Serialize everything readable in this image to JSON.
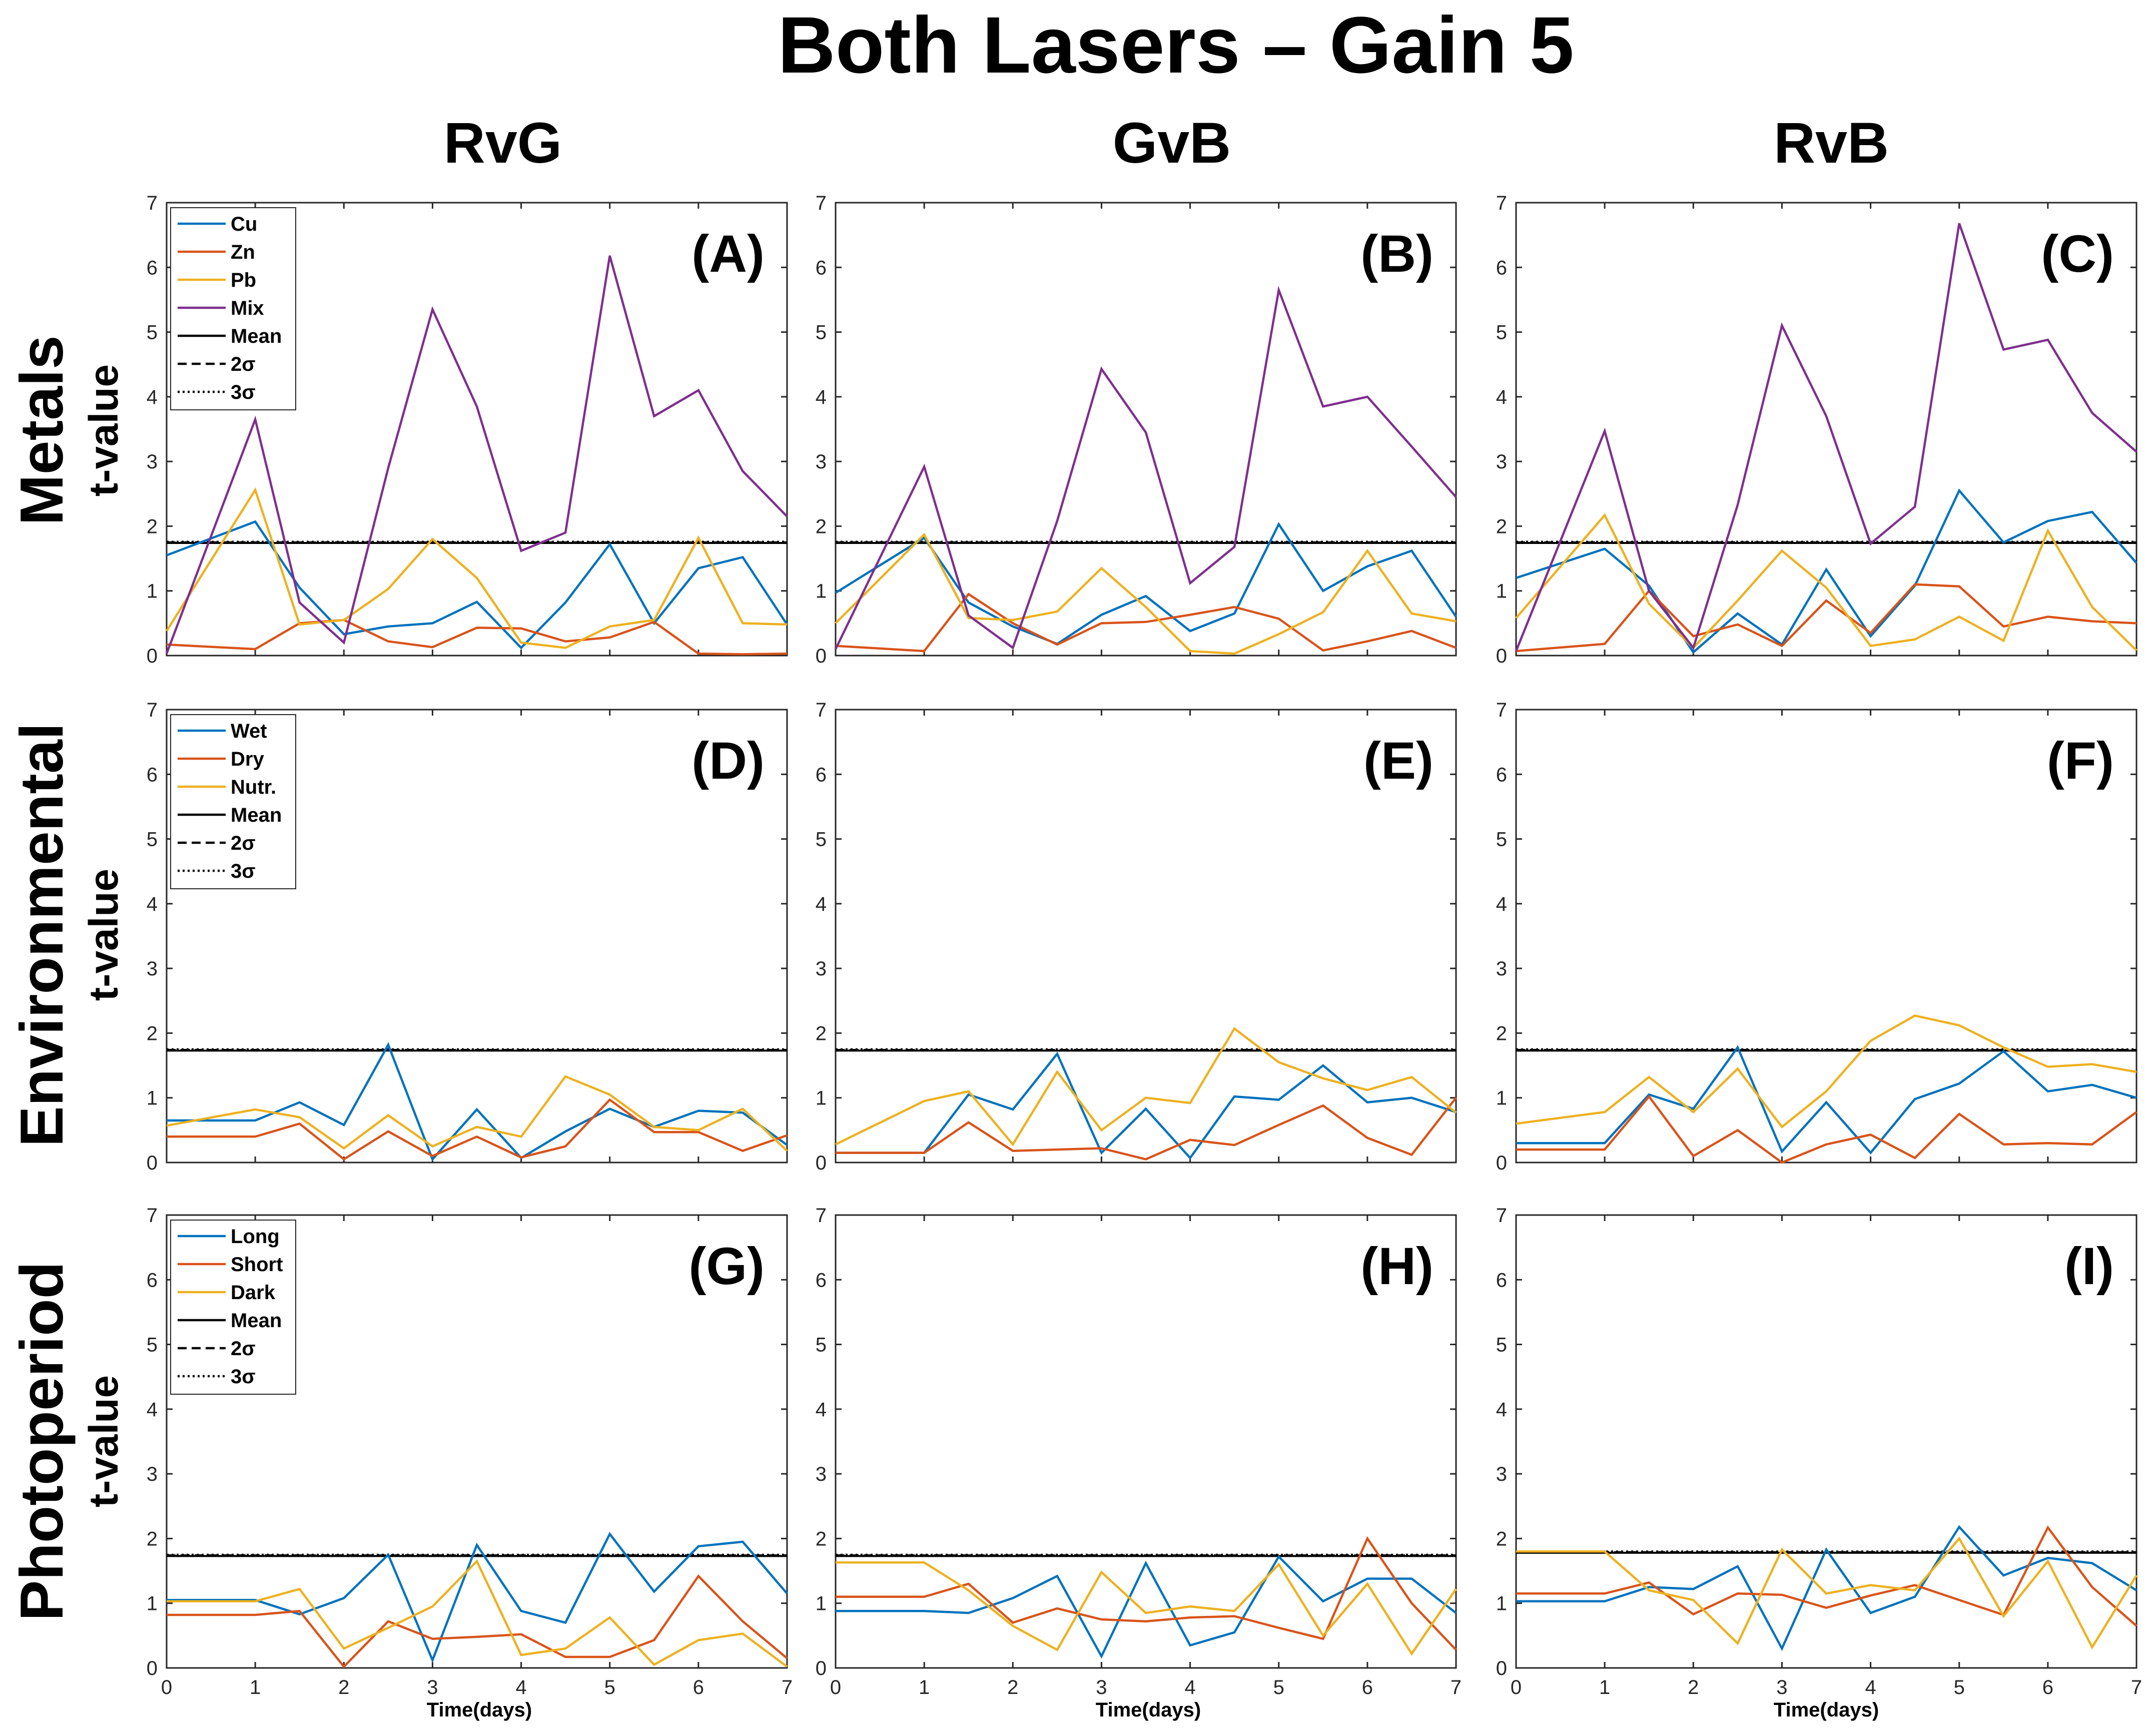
{
  "figure": {
    "title": "Both Lasers – Gain 5",
    "column_titles": [
      "RvG",
      "GvB",
      "RvB"
    ],
    "row_titles": [
      "Metals",
      "Environmental",
      "Photoperiod"
    ],
    "ylabel": "t-value",
    "xlabel": "Time(days)",
    "colors": {
      "blue": "#0072BD",
      "orange": "#D95319",
      "yellow": "#EDB120",
      "purple": "#7E2F8E",
      "reference": "#000000"
    }
  },
  "chart_data": [
    {
      "type": "line",
      "panel": "A",
      "group": "Metals",
      "comparison": "RvG",
      "xlim": [
        0,
        7
      ],
      "ylim": [
        0,
        7
      ],
      "legend_position": "top-left",
      "x": [
        0,
        1,
        1.5,
        2,
        2.5,
        3,
        3.5,
        4,
        4.5,
        5,
        5.5,
        6,
        6.5,
        7
      ],
      "series": [
        {
          "name": "Cu",
          "color": "#0072BD",
          "values": [
            1.55,
            2.07,
            1.05,
            0.33,
            0.45,
            0.5,
            0.83,
            0.12,
            0.82,
            1.72,
            0.5,
            1.35,
            1.52,
            0.48
          ]
        },
        {
          "name": "Zn",
          "color": "#D95319",
          "values": [
            0.17,
            0.1,
            0.5,
            0.55,
            0.22,
            0.13,
            0.43,
            0.42,
            0.22,
            0.28,
            0.52,
            0.03,
            0.02,
            0.03
          ]
        },
        {
          "name": "Pb",
          "color": "#EDB120",
          "values": [
            0.38,
            2.56,
            0.48,
            0.55,
            1.03,
            1.8,
            1.2,
            0.2,
            0.12,
            0.45,
            0.55,
            1.82,
            0.5,
            0.48
          ]
        },
        {
          "name": "Mix",
          "color": "#7E2F8E",
          "values": [
            0.03,
            3.65,
            0.82,
            0.2,
            2.9,
            5.35,
            3.85,
            1.62,
            1.9,
            6.18,
            3.7,
            4.1,
            2.85,
            2.15
          ]
        }
      ],
      "reference_lines": [
        {
          "name": "Mean",
          "style": "solid",
          "value": 1.74
        },
        {
          "name": "2σ",
          "style": "dashed",
          "value": 1.75
        },
        {
          "name": "3σ",
          "style": "dotted",
          "value": 1.76
        }
      ]
    },
    {
      "type": "line",
      "panel": "B",
      "group": "Metals",
      "comparison": "GvB",
      "xlim": [
        0,
        7
      ],
      "ylim": [
        0,
        7
      ],
      "legend_position": "none",
      "x": [
        0,
        1,
        1.5,
        2,
        2.5,
        3,
        3.5,
        4,
        4.5,
        5,
        5.5,
        6,
        6.5,
        7
      ],
      "series": [
        {
          "name": "Cu",
          "color": "#0072BD",
          "values": [
            0.97,
            1.82,
            0.82,
            0.45,
            0.18,
            0.63,
            0.92,
            0.38,
            0.65,
            2.03,
            1.0,
            1.38,
            1.62,
            0.6
          ]
        },
        {
          "name": "Zn",
          "color": "#D95319",
          "values": [
            0.15,
            0.07,
            0.95,
            0.5,
            0.17,
            0.5,
            0.52,
            0.63,
            0.75,
            0.57,
            0.08,
            0.22,
            0.38,
            0.12
          ]
        },
        {
          "name": "Pb",
          "color": "#EDB120",
          "values": [
            0.5,
            1.87,
            0.58,
            0.55,
            0.68,
            1.35,
            0.75,
            0.07,
            0.03,
            0.33,
            0.67,
            1.62,
            0.65,
            0.53
          ]
        },
        {
          "name": "Mix",
          "color": "#7E2F8E",
          "values": [
            0.1,
            2.92,
            0.62,
            0.12,
            2.08,
            4.43,
            3.45,
            1.12,
            1.68,
            5.65,
            3.85,
            4.0,
            3.23,
            2.45
          ]
        }
      ],
      "reference_lines": [
        {
          "name": "Mean",
          "style": "solid",
          "value": 1.74
        },
        {
          "name": "2σ",
          "style": "dashed",
          "value": 1.75
        },
        {
          "name": "3σ",
          "style": "dotted",
          "value": 1.76
        }
      ]
    },
    {
      "type": "line",
      "panel": "C",
      "group": "Metals",
      "comparison": "RvB",
      "xlim": [
        0,
        7
      ],
      "ylim": [
        0,
        7
      ],
      "legend_position": "none",
      "x": [
        0,
        1,
        1.5,
        2,
        2.5,
        3,
        3.5,
        4,
        4.5,
        5,
        5.5,
        6,
        6.5,
        7
      ],
      "series": [
        {
          "name": "Cu",
          "color": "#0072BD",
          "values": [
            1.2,
            1.65,
            1.08,
            0.05,
            0.65,
            0.17,
            1.33,
            0.3,
            1.08,
            2.55,
            1.75,
            2.08,
            2.22,
            1.43
          ]
        },
        {
          "name": "Zn",
          "color": "#D95319",
          "values": [
            0.07,
            0.18,
            1.0,
            0.3,
            0.48,
            0.15,
            0.85,
            0.35,
            1.1,
            1.07,
            0.45,
            0.6,
            0.53,
            0.5
          ]
        },
        {
          "name": "Pb",
          "color": "#EDB120",
          "values": [
            0.58,
            2.17,
            0.8,
            0.12,
            0.85,
            1.62,
            1.05,
            0.15,
            0.25,
            0.6,
            0.23,
            1.93,
            0.75,
            0.08
          ]
        },
        {
          "name": "Mix",
          "color": "#7E2F8E",
          "values": [
            0.07,
            3.47,
            1.0,
            0.12,
            2.33,
            5.1,
            3.7,
            1.73,
            2.3,
            6.68,
            4.73,
            4.88,
            3.75,
            3.15
          ]
        }
      ],
      "reference_lines": [
        {
          "name": "Mean",
          "style": "solid",
          "value": 1.74
        },
        {
          "name": "2σ",
          "style": "dashed",
          "value": 1.75
        },
        {
          "name": "3σ",
          "style": "dotted",
          "value": 1.76
        }
      ]
    },
    {
      "type": "line",
      "panel": "D",
      "group": "Environmental",
      "comparison": "RvG",
      "xlim": [
        0,
        7
      ],
      "ylim": [
        0,
        7
      ],
      "legend_position": "top-left",
      "x": [
        0,
        1,
        1.5,
        2,
        2.5,
        3,
        3.5,
        4,
        4.5,
        5,
        5.5,
        6,
        6.5,
        7
      ],
      "series": [
        {
          "name": "Wet",
          "color": "#0072BD",
          "values": [
            0.65,
            0.65,
            0.93,
            0.58,
            1.82,
            0.05,
            0.82,
            0.07,
            0.48,
            0.83,
            0.55,
            0.8,
            0.77,
            0.27
          ]
        },
        {
          "name": "Dry",
          "color": "#D95319",
          "values": [
            0.4,
            0.4,
            0.6,
            0.05,
            0.48,
            0.1,
            0.4,
            0.08,
            0.25,
            0.97,
            0.47,
            0.47,
            0.18,
            0.42
          ]
        },
        {
          "name": "Nutr.",
          "color": "#EDB120",
          "values": [
            0.57,
            0.82,
            0.7,
            0.22,
            0.73,
            0.25,
            0.55,
            0.4,
            1.33,
            1.05,
            0.55,
            0.5,
            0.83,
            0.18
          ]
        }
      ],
      "reference_lines": [
        {
          "name": "Mean",
          "style": "solid",
          "value": 1.73
        },
        {
          "name": "2σ",
          "style": "dashed",
          "value": 1.74
        },
        {
          "name": "3σ",
          "style": "dotted",
          "value": 1.75
        }
      ]
    },
    {
      "type": "line",
      "panel": "E",
      "group": "Environmental",
      "comparison": "GvB",
      "xlim": [
        0,
        7
      ],
      "ylim": [
        0,
        7
      ],
      "legend_position": "none",
      "x": [
        0,
        1,
        1.5,
        2,
        2.5,
        3,
        3.5,
        4,
        4.5,
        5,
        5.5,
        6,
        6.5,
        7
      ],
      "series": [
        {
          "name": "Wet",
          "color": "#0072BD",
          "values": [
            0.15,
            0.15,
            1.05,
            0.82,
            1.68,
            0.15,
            0.83,
            0.07,
            1.02,
            0.97,
            1.5,
            0.93,
            1.0,
            0.78
          ]
        },
        {
          "name": "Dry",
          "color": "#D95319",
          "values": [
            0.15,
            0.15,
            0.62,
            0.18,
            0.2,
            0.22,
            0.05,
            0.35,
            0.27,
            0.58,
            0.88,
            0.38,
            0.12,
            1.0
          ]
        },
        {
          "name": "Nutr.",
          "color": "#EDB120",
          "values": [
            0.28,
            0.95,
            1.1,
            0.28,
            1.4,
            0.5,
            1.0,
            0.92,
            2.07,
            1.55,
            1.3,
            1.12,
            1.32,
            0.77
          ]
        }
      ],
      "reference_lines": [
        {
          "name": "Mean",
          "style": "solid",
          "value": 1.73
        },
        {
          "name": "2σ",
          "style": "dashed",
          "value": 1.74
        },
        {
          "name": "3σ",
          "style": "dotted",
          "value": 1.75
        }
      ]
    },
    {
      "type": "line",
      "panel": "F",
      "group": "Environmental",
      "comparison": "RvB",
      "xlim": [
        0,
        7
      ],
      "ylim": [
        0,
        7
      ],
      "legend_position": "none",
      "x": [
        0,
        1,
        1.5,
        2,
        2.5,
        3,
        3.5,
        4,
        4.5,
        5,
        5.5,
        6,
        6.5,
        7
      ],
      "series": [
        {
          "name": "Wet",
          "color": "#0072BD",
          "values": [
            0.3,
            0.3,
            1.05,
            0.83,
            1.78,
            0.17,
            0.93,
            0.15,
            0.98,
            1.22,
            1.72,
            1.1,
            1.2,
            1.0
          ]
        },
        {
          "name": "Dry",
          "color": "#D95319",
          "values": [
            0.2,
            0.2,
            1.02,
            0.1,
            0.5,
            0.0,
            0.28,
            0.43,
            0.07,
            0.75,
            0.28,
            0.3,
            0.28,
            0.78
          ]
        },
        {
          "name": "Nutr.",
          "color": "#EDB120",
          "values": [
            0.6,
            0.78,
            1.32,
            0.78,
            1.45,
            0.55,
            1.1,
            1.88,
            2.27,
            2.12,
            1.78,
            1.48,
            1.52,
            1.4
          ]
        }
      ],
      "reference_lines": [
        {
          "name": "Mean",
          "style": "solid",
          "value": 1.73
        },
        {
          "name": "2σ",
          "style": "dashed",
          "value": 1.74
        },
        {
          "name": "3σ",
          "style": "dotted",
          "value": 1.75
        }
      ]
    },
    {
      "type": "line",
      "panel": "G",
      "group": "Photoperiod",
      "comparison": "RvG",
      "xlim": [
        0,
        7
      ],
      "ylim": [
        0,
        7
      ],
      "legend_position": "top-left",
      "x": [
        0,
        1,
        1.5,
        2,
        2.5,
        3,
        3.5,
        4,
        4.5,
        5,
        5.5,
        6,
        6.5,
        7
      ],
      "series": [
        {
          "name": "Long",
          "color": "#0072BD",
          "values": [
            1.05,
            1.05,
            0.83,
            1.08,
            1.75,
            0.12,
            1.9,
            0.88,
            0.7,
            2.07,
            1.18,
            1.88,
            1.95,
            1.15
          ]
        },
        {
          "name": "Short",
          "color": "#D95319",
          "values": [
            0.82,
            0.82,
            0.88,
            0.02,
            0.72,
            0.45,
            0.48,
            0.52,
            0.17,
            0.17,
            0.43,
            1.42,
            0.72,
            0.15
          ]
        },
        {
          "name": "Dark",
          "color": "#EDB120",
          "values": [
            1.03,
            1.03,
            1.22,
            0.3,
            0.62,
            0.95,
            1.65,
            0.2,
            0.3,
            0.78,
            0.05,
            0.43,
            0.53,
            0.02
          ]
        }
      ],
      "reference_lines": [
        {
          "name": "Mean",
          "style": "solid",
          "value": 1.73
        },
        {
          "name": "2σ",
          "style": "dashed",
          "value": 1.74
        },
        {
          "name": "3σ",
          "style": "dotted",
          "value": 1.75
        }
      ]
    },
    {
      "type": "line",
      "panel": "H",
      "group": "Photoperiod",
      "comparison": "GvB",
      "xlim": [
        0,
        7
      ],
      "ylim": [
        0,
        7
      ],
      "legend_position": "none",
      "x": [
        0,
        1,
        1.5,
        2,
        2.5,
        3,
        3.5,
        4,
        4.5,
        5,
        5.5,
        6,
        6.5,
        7
      ],
      "series": [
        {
          "name": "Long",
          "color": "#0072BD",
          "values": [
            0.88,
            0.88,
            0.85,
            1.08,
            1.42,
            0.18,
            1.62,
            0.35,
            0.55,
            1.72,
            1.03,
            1.38,
            1.38,
            0.85
          ]
        },
        {
          "name": "Short",
          "color": "#D95319",
          "values": [
            1.1,
            1.1,
            1.3,
            0.7,
            0.92,
            0.75,
            0.72,
            0.78,
            0.8,
            0.62,
            0.45,
            2.0,
            1.0,
            0.28
          ]
        },
        {
          "name": "Dark",
          "color": "#EDB120",
          "values": [
            1.63,
            1.63,
            1.2,
            0.65,
            0.28,
            1.48,
            0.85,
            0.95,
            0.88,
            1.6,
            0.5,
            1.3,
            0.22,
            1.22
          ]
        }
      ],
      "reference_lines": [
        {
          "name": "Mean",
          "style": "solid",
          "value": 1.73
        },
        {
          "name": "2σ",
          "style": "dashed",
          "value": 1.74
        },
        {
          "name": "3σ",
          "style": "dotted",
          "value": 1.75
        }
      ]
    },
    {
      "type": "line",
      "panel": "I",
      "group": "Photoperiod",
      "comparison": "RvB",
      "xlim": [
        0,
        7
      ],
      "ylim": [
        0,
        7
      ],
      "legend_position": "none",
      "x": [
        0,
        1,
        1.5,
        2,
        2.5,
        3,
        3.5,
        4,
        4.5,
        5,
        5.5,
        6,
        6.5,
        7
      ],
      "series": [
        {
          "name": "Long",
          "color": "#0072BD",
          "values": [
            1.03,
            1.03,
            1.25,
            1.22,
            1.57,
            0.3,
            1.83,
            0.85,
            1.1,
            2.18,
            1.43,
            1.7,
            1.62,
            1.2
          ]
        },
        {
          "name": "Short",
          "color": "#D95319",
          "values": [
            1.15,
            1.15,
            1.32,
            0.83,
            1.15,
            1.13,
            0.93,
            1.12,
            1.28,
            1.05,
            0.82,
            2.17,
            1.25,
            0.65
          ]
        },
        {
          "name": "Dark",
          "color": "#EDB120",
          "values": [
            1.8,
            1.8,
            1.2,
            1.05,
            0.38,
            1.83,
            1.15,
            1.28,
            1.2,
            2.0,
            0.8,
            1.65,
            0.32,
            1.43
          ]
        }
      ],
      "reference_lines": [
        {
          "name": "Mean",
          "style": "solid",
          "value": 1.78
        },
        {
          "name": "2σ",
          "style": "dashed",
          "value": 1.79
        },
        {
          "name": "3σ",
          "style": "dotted",
          "value": 1.8
        }
      ]
    }
  ]
}
